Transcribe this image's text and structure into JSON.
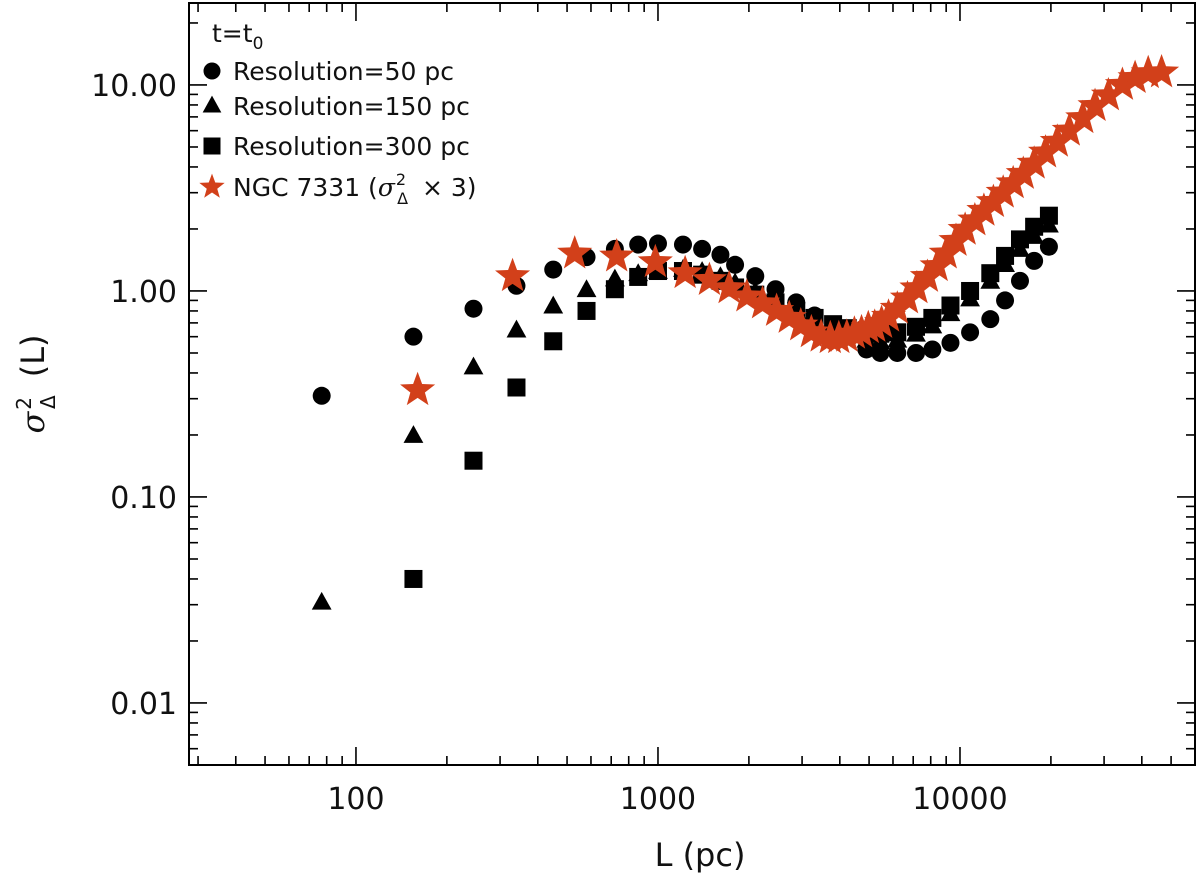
{
  "chart_data": {
    "type": "scatter",
    "title": "",
    "xlabel": "L (pc)",
    "ylabel": {
      "symbol": "σ",
      "superscript": "2",
      "subscript": "Δ",
      "suffix": "(L)"
    },
    "xscale": "log",
    "yscale": "log",
    "xlim": [
      28,
      60000
    ],
    "ylim": [
      0.005,
      25
    ],
    "xticks": [
      {
        "value": 100,
        "label": "100"
      },
      {
        "value": 1000,
        "label": "1000"
      },
      {
        "value": 10000,
        "label": "10000"
      }
    ],
    "yticks": [
      {
        "value": 0.01,
        "label": "0.01"
      },
      {
        "value": 0.1,
        "label": "0.10"
      },
      {
        "value": 1,
        "label": "1.00"
      },
      {
        "value": 10,
        "label": "10.00"
      }
    ],
    "legend": {
      "placement": "top-left",
      "header": {
        "base": "t=t",
        "subscript": "0"
      },
      "entries": [
        {
          "series": 0,
          "label": "Resolution=50 pc"
        },
        {
          "series": 1,
          "label": "Resolution=150 pc"
        },
        {
          "series": 2,
          "label": "Resolution=300 pc"
        },
        {
          "series": 3,
          "label_prefix": "NGC 7331 (",
          "label_symbol": "σ",
          "label_sup": "2",
          "label_sub": "Δ",
          "label_suffix": " × 3)"
        }
      ]
    },
    "series": [
      {
        "name": "Resolution=50 pc",
        "marker": "circle",
        "color": "#000000",
        "x": [
          77,
          155,
          245,
          340,
          450,
          580,
          720,
          860,
          1000,
          1210,
          1400,
          1610,
          1800,
          2100,
          2450,
          2870,
          3300,
          3800,
          4250,
          4900,
          5450,
          6200,
          7150,
          8100,
          9300,
          10800,
          12600,
          14100,
          15800,
          17600,
          19700
        ],
        "y": [
          0.31,
          0.6,
          0.82,
          1.06,
          1.27,
          1.46,
          1.6,
          1.68,
          1.7,
          1.68,
          1.6,
          1.5,
          1.34,
          1.18,
          1.02,
          0.88,
          0.76,
          0.66,
          0.6,
          0.52,
          0.5,
          0.5,
          0.5,
          0.52,
          0.56,
          0.63,
          0.73,
          0.9,
          1.12,
          1.4,
          1.64
        ]
      },
      {
        "name": "Resolution=150 pc",
        "marker": "triangle",
        "color": "#000000",
        "x": [
          77,
          155,
          245,
          340,
          450,
          580,
          720,
          860,
          1000,
          1210,
          1400,
          1610,
          1800,
          2100,
          2450,
          2870,
          3300,
          3800,
          4250,
          4900,
          5450,
          6200,
          7150,
          8100,
          9300,
          10800,
          12600,
          14100,
          15800,
          17600,
          19700
        ],
        "y": [
          0.031,
          0.2,
          0.43,
          0.65,
          0.85,
          1.02,
          1.15,
          1.22,
          1.25,
          1.28,
          1.25,
          1.18,
          1.1,
          1.0,
          0.9,
          0.8,
          0.72,
          0.66,
          0.62,
          0.58,
          0.57,
          0.58,
          0.62,
          0.68,
          0.78,
          0.92,
          1.12,
          1.35,
          1.6,
          1.85,
          2.1
        ]
      },
      {
        "name": "Resolution=300 pc",
        "marker": "square",
        "color": "#000000",
        "x": [
          155,
          245,
          340,
          450,
          580,
          720,
          860,
          1000,
          1210,
          1400,
          1610,
          1800,
          2100,
          2450,
          2870,
          3300,
          3800,
          4250,
          4900,
          5450,
          6200,
          7150,
          8100,
          9300,
          10800,
          12600,
          14100,
          15800,
          17600,
          19700
        ],
        "y": [
          0.04,
          0.15,
          0.34,
          0.57,
          0.8,
          1.02,
          1.17,
          1.25,
          1.25,
          1.2,
          1.12,
          1.04,
          0.96,
          0.88,
          0.8,
          0.74,
          0.69,
          0.66,
          0.64,
          0.62,
          0.63,
          0.67,
          0.74,
          0.85,
          1.0,
          1.22,
          1.48,
          1.78,
          2.05,
          2.32
        ]
      },
      {
        "name": "NGC 7331 (σ²Δ × 3)",
        "marker": "star",
        "color": "#d2401a",
        "x": [
          160,
          330,
          530,
          730,
          980,
          1230,
          1480,
          1720,
          1970,
          2220,
          2470,
          2720,
          2970,
          3220,
          3470,
          3720,
          3970,
          4220,
          4470,
          4720,
          4970,
          5220,
          5500,
          5800,
          6200,
          6700,
          7200,
          7800,
          8400,
          9000,
          9700,
          10400,
          11200,
          12000,
          12900,
          13900,
          15000,
          16200,
          17600,
          19200,
          21000,
          23000,
          25500,
          28000,
          31000,
          34500,
          38000,
          42000,
          46500
        ],
        "y": [
          0.33,
          1.18,
          1.52,
          1.47,
          1.38,
          1.22,
          1.13,
          1.03,
          0.94,
          0.87,
          0.8,
          0.74,
          0.68,
          0.63,
          0.6,
          0.59,
          0.59,
          0.6,
          0.62,
          0.63,
          0.66,
          0.67,
          0.7,
          0.75,
          0.82,
          0.92,
          1.03,
          1.17,
          1.32,
          1.52,
          1.75,
          1.98,
          2.2,
          2.45,
          2.7,
          3.0,
          3.33,
          3.7,
          4.15,
          4.7,
          5.3,
          6.0,
          6.9,
          7.9,
          8.9,
          10.0,
          10.8,
          11.4,
          11.5
        ]
      }
    ]
  }
}
